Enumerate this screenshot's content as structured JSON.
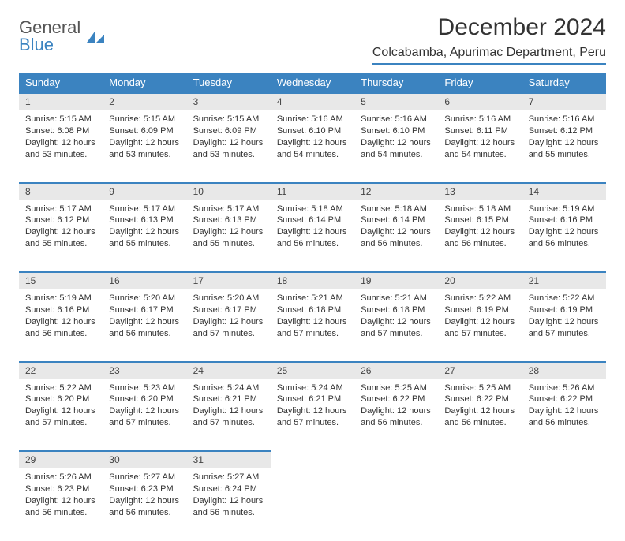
{
  "brand": {
    "line1": "General",
    "line2": "Blue"
  },
  "title": "December 2024",
  "location": "Colcabamba, Apurimac Department, Peru",
  "colors": {
    "accent": "#3b83c0",
    "header_bg": "#3b83c0",
    "header_text": "#ffffff",
    "daynum_bg": "#e8e8e8",
    "body_text": "#333333",
    "page_bg": "#ffffff"
  },
  "typography": {
    "title_fontsize": 30,
    "location_fontsize": 16,
    "weekday_fontsize": 13,
    "daynum_fontsize": 12,
    "cell_fontsize": 11,
    "font_family": "Arial"
  },
  "weekdays": [
    "Sunday",
    "Monday",
    "Tuesday",
    "Wednesday",
    "Thursday",
    "Friday",
    "Saturday"
  ],
  "weeks": [
    [
      {
        "day": "1",
        "sunrise": "5:15 AM",
        "sunset": "6:08 PM",
        "daylight": "12 hours and 53 minutes."
      },
      {
        "day": "2",
        "sunrise": "5:15 AM",
        "sunset": "6:09 PM",
        "daylight": "12 hours and 53 minutes."
      },
      {
        "day": "3",
        "sunrise": "5:15 AM",
        "sunset": "6:09 PM",
        "daylight": "12 hours and 53 minutes."
      },
      {
        "day": "4",
        "sunrise": "5:16 AM",
        "sunset": "6:10 PM",
        "daylight": "12 hours and 54 minutes."
      },
      {
        "day": "5",
        "sunrise": "5:16 AM",
        "sunset": "6:10 PM",
        "daylight": "12 hours and 54 minutes."
      },
      {
        "day": "6",
        "sunrise": "5:16 AM",
        "sunset": "6:11 PM",
        "daylight": "12 hours and 54 minutes."
      },
      {
        "day": "7",
        "sunrise": "5:16 AM",
        "sunset": "6:12 PM",
        "daylight": "12 hours and 55 minutes."
      }
    ],
    [
      {
        "day": "8",
        "sunrise": "5:17 AM",
        "sunset": "6:12 PM",
        "daylight": "12 hours and 55 minutes."
      },
      {
        "day": "9",
        "sunrise": "5:17 AM",
        "sunset": "6:13 PM",
        "daylight": "12 hours and 55 minutes."
      },
      {
        "day": "10",
        "sunrise": "5:17 AM",
        "sunset": "6:13 PM",
        "daylight": "12 hours and 55 minutes."
      },
      {
        "day": "11",
        "sunrise": "5:18 AM",
        "sunset": "6:14 PM",
        "daylight": "12 hours and 56 minutes."
      },
      {
        "day": "12",
        "sunrise": "5:18 AM",
        "sunset": "6:14 PM",
        "daylight": "12 hours and 56 minutes."
      },
      {
        "day": "13",
        "sunrise": "5:18 AM",
        "sunset": "6:15 PM",
        "daylight": "12 hours and 56 minutes."
      },
      {
        "day": "14",
        "sunrise": "5:19 AM",
        "sunset": "6:16 PM",
        "daylight": "12 hours and 56 minutes."
      }
    ],
    [
      {
        "day": "15",
        "sunrise": "5:19 AM",
        "sunset": "6:16 PM",
        "daylight": "12 hours and 56 minutes."
      },
      {
        "day": "16",
        "sunrise": "5:20 AM",
        "sunset": "6:17 PM",
        "daylight": "12 hours and 56 minutes."
      },
      {
        "day": "17",
        "sunrise": "5:20 AM",
        "sunset": "6:17 PM",
        "daylight": "12 hours and 57 minutes."
      },
      {
        "day": "18",
        "sunrise": "5:21 AM",
        "sunset": "6:18 PM",
        "daylight": "12 hours and 57 minutes."
      },
      {
        "day": "19",
        "sunrise": "5:21 AM",
        "sunset": "6:18 PM",
        "daylight": "12 hours and 57 minutes."
      },
      {
        "day": "20",
        "sunrise": "5:22 AM",
        "sunset": "6:19 PM",
        "daylight": "12 hours and 57 minutes."
      },
      {
        "day": "21",
        "sunrise": "5:22 AM",
        "sunset": "6:19 PM",
        "daylight": "12 hours and 57 minutes."
      }
    ],
    [
      {
        "day": "22",
        "sunrise": "5:22 AM",
        "sunset": "6:20 PM",
        "daylight": "12 hours and 57 minutes."
      },
      {
        "day": "23",
        "sunrise": "5:23 AM",
        "sunset": "6:20 PM",
        "daylight": "12 hours and 57 minutes."
      },
      {
        "day": "24",
        "sunrise": "5:24 AM",
        "sunset": "6:21 PM",
        "daylight": "12 hours and 57 minutes."
      },
      {
        "day": "25",
        "sunrise": "5:24 AM",
        "sunset": "6:21 PM",
        "daylight": "12 hours and 57 minutes."
      },
      {
        "day": "26",
        "sunrise": "5:25 AM",
        "sunset": "6:22 PM",
        "daylight": "12 hours and 56 minutes."
      },
      {
        "day": "27",
        "sunrise": "5:25 AM",
        "sunset": "6:22 PM",
        "daylight": "12 hours and 56 minutes."
      },
      {
        "day": "28",
        "sunrise": "5:26 AM",
        "sunset": "6:22 PM",
        "daylight": "12 hours and 56 minutes."
      }
    ],
    [
      {
        "day": "29",
        "sunrise": "5:26 AM",
        "sunset": "6:23 PM",
        "daylight": "12 hours and 56 minutes."
      },
      {
        "day": "30",
        "sunrise": "5:27 AM",
        "sunset": "6:23 PM",
        "daylight": "12 hours and 56 minutes."
      },
      {
        "day": "31",
        "sunrise": "5:27 AM",
        "sunset": "6:24 PM",
        "daylight": "12 hours and 56 minutes."
      },
      null,
      null,
      null,
      null
    ]
  ],
  "labels": {
    "sunrise": "Sunrise:",
    "sunset": "Sunset:",
    "daylight": "Daylight:"
  }
}
